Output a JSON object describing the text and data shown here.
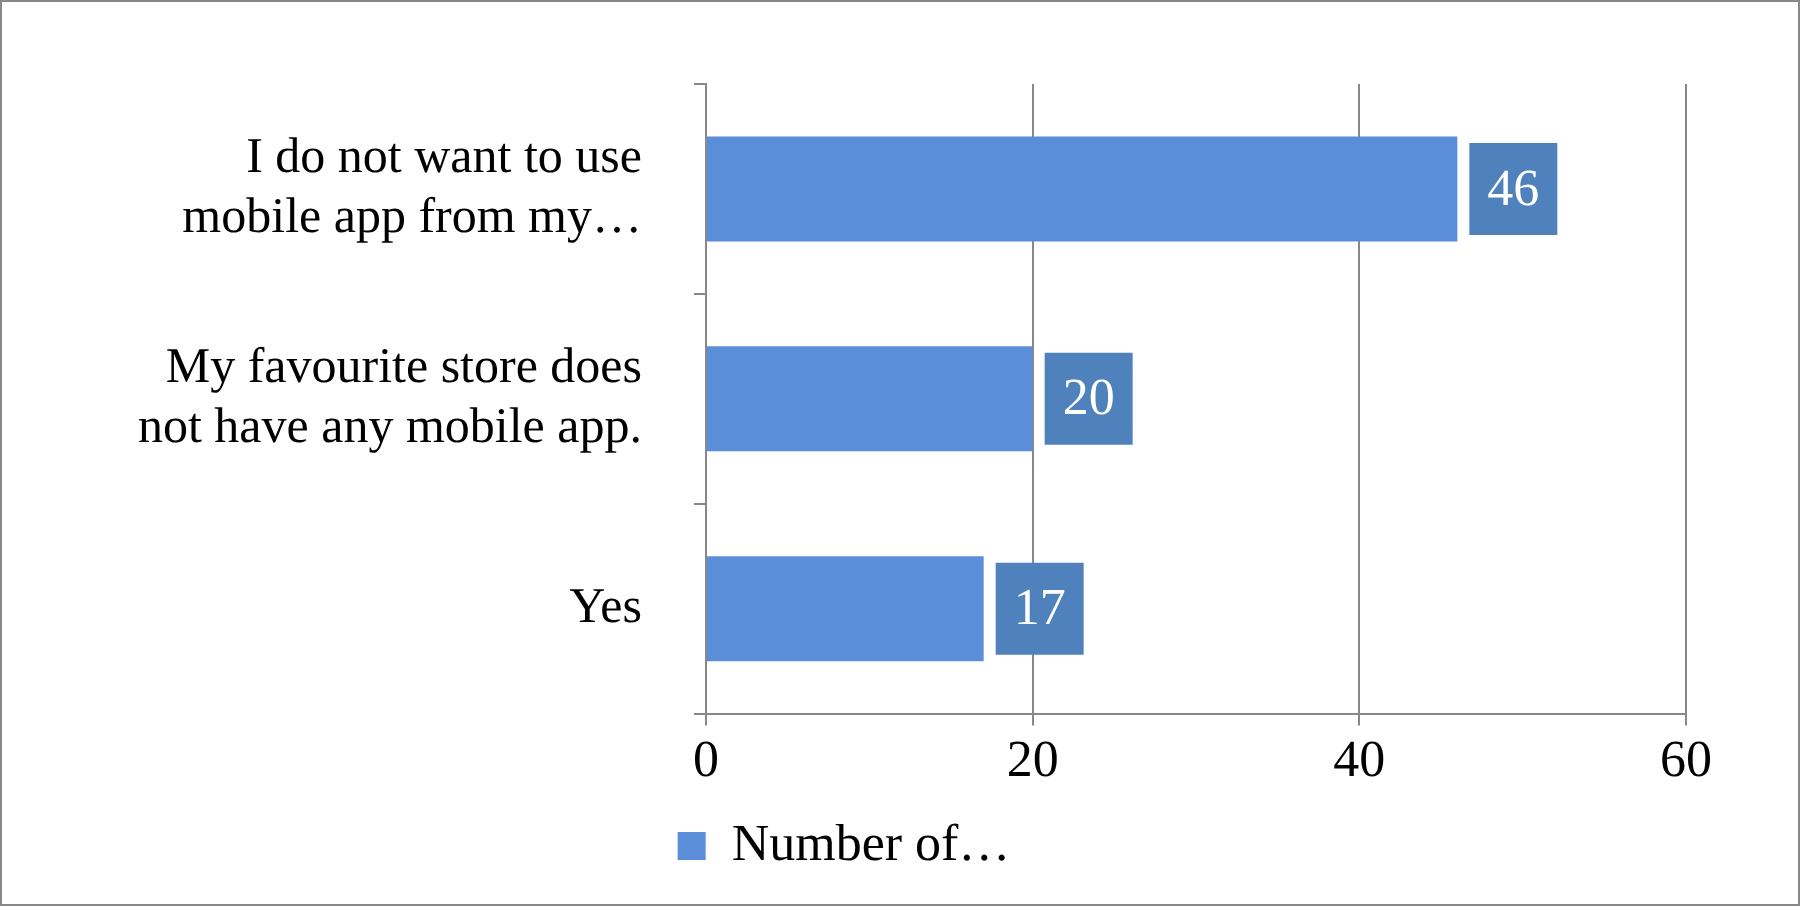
{
  "chart_data": {
    "type": "bar",
    "orientation": "horizontal",
    "categories": [
      "I do not want to use mobile app from my…",
      "My favourite store does not have any mobile app.",
      "Yes"
    ],
    "series": [
      {
        "name": "Number of…",
        "color": "#5a8ed8",
        "values": [
          46,
          20,
          17
        ]
      }
    ],
    "xlim": [
      0,
      60
    ],
    "xticks": [
      0,
      20,
      40,
      60
    ],
    "grid": "x",
    "legend": "bottom",
    "data_labels": true
  }
}
